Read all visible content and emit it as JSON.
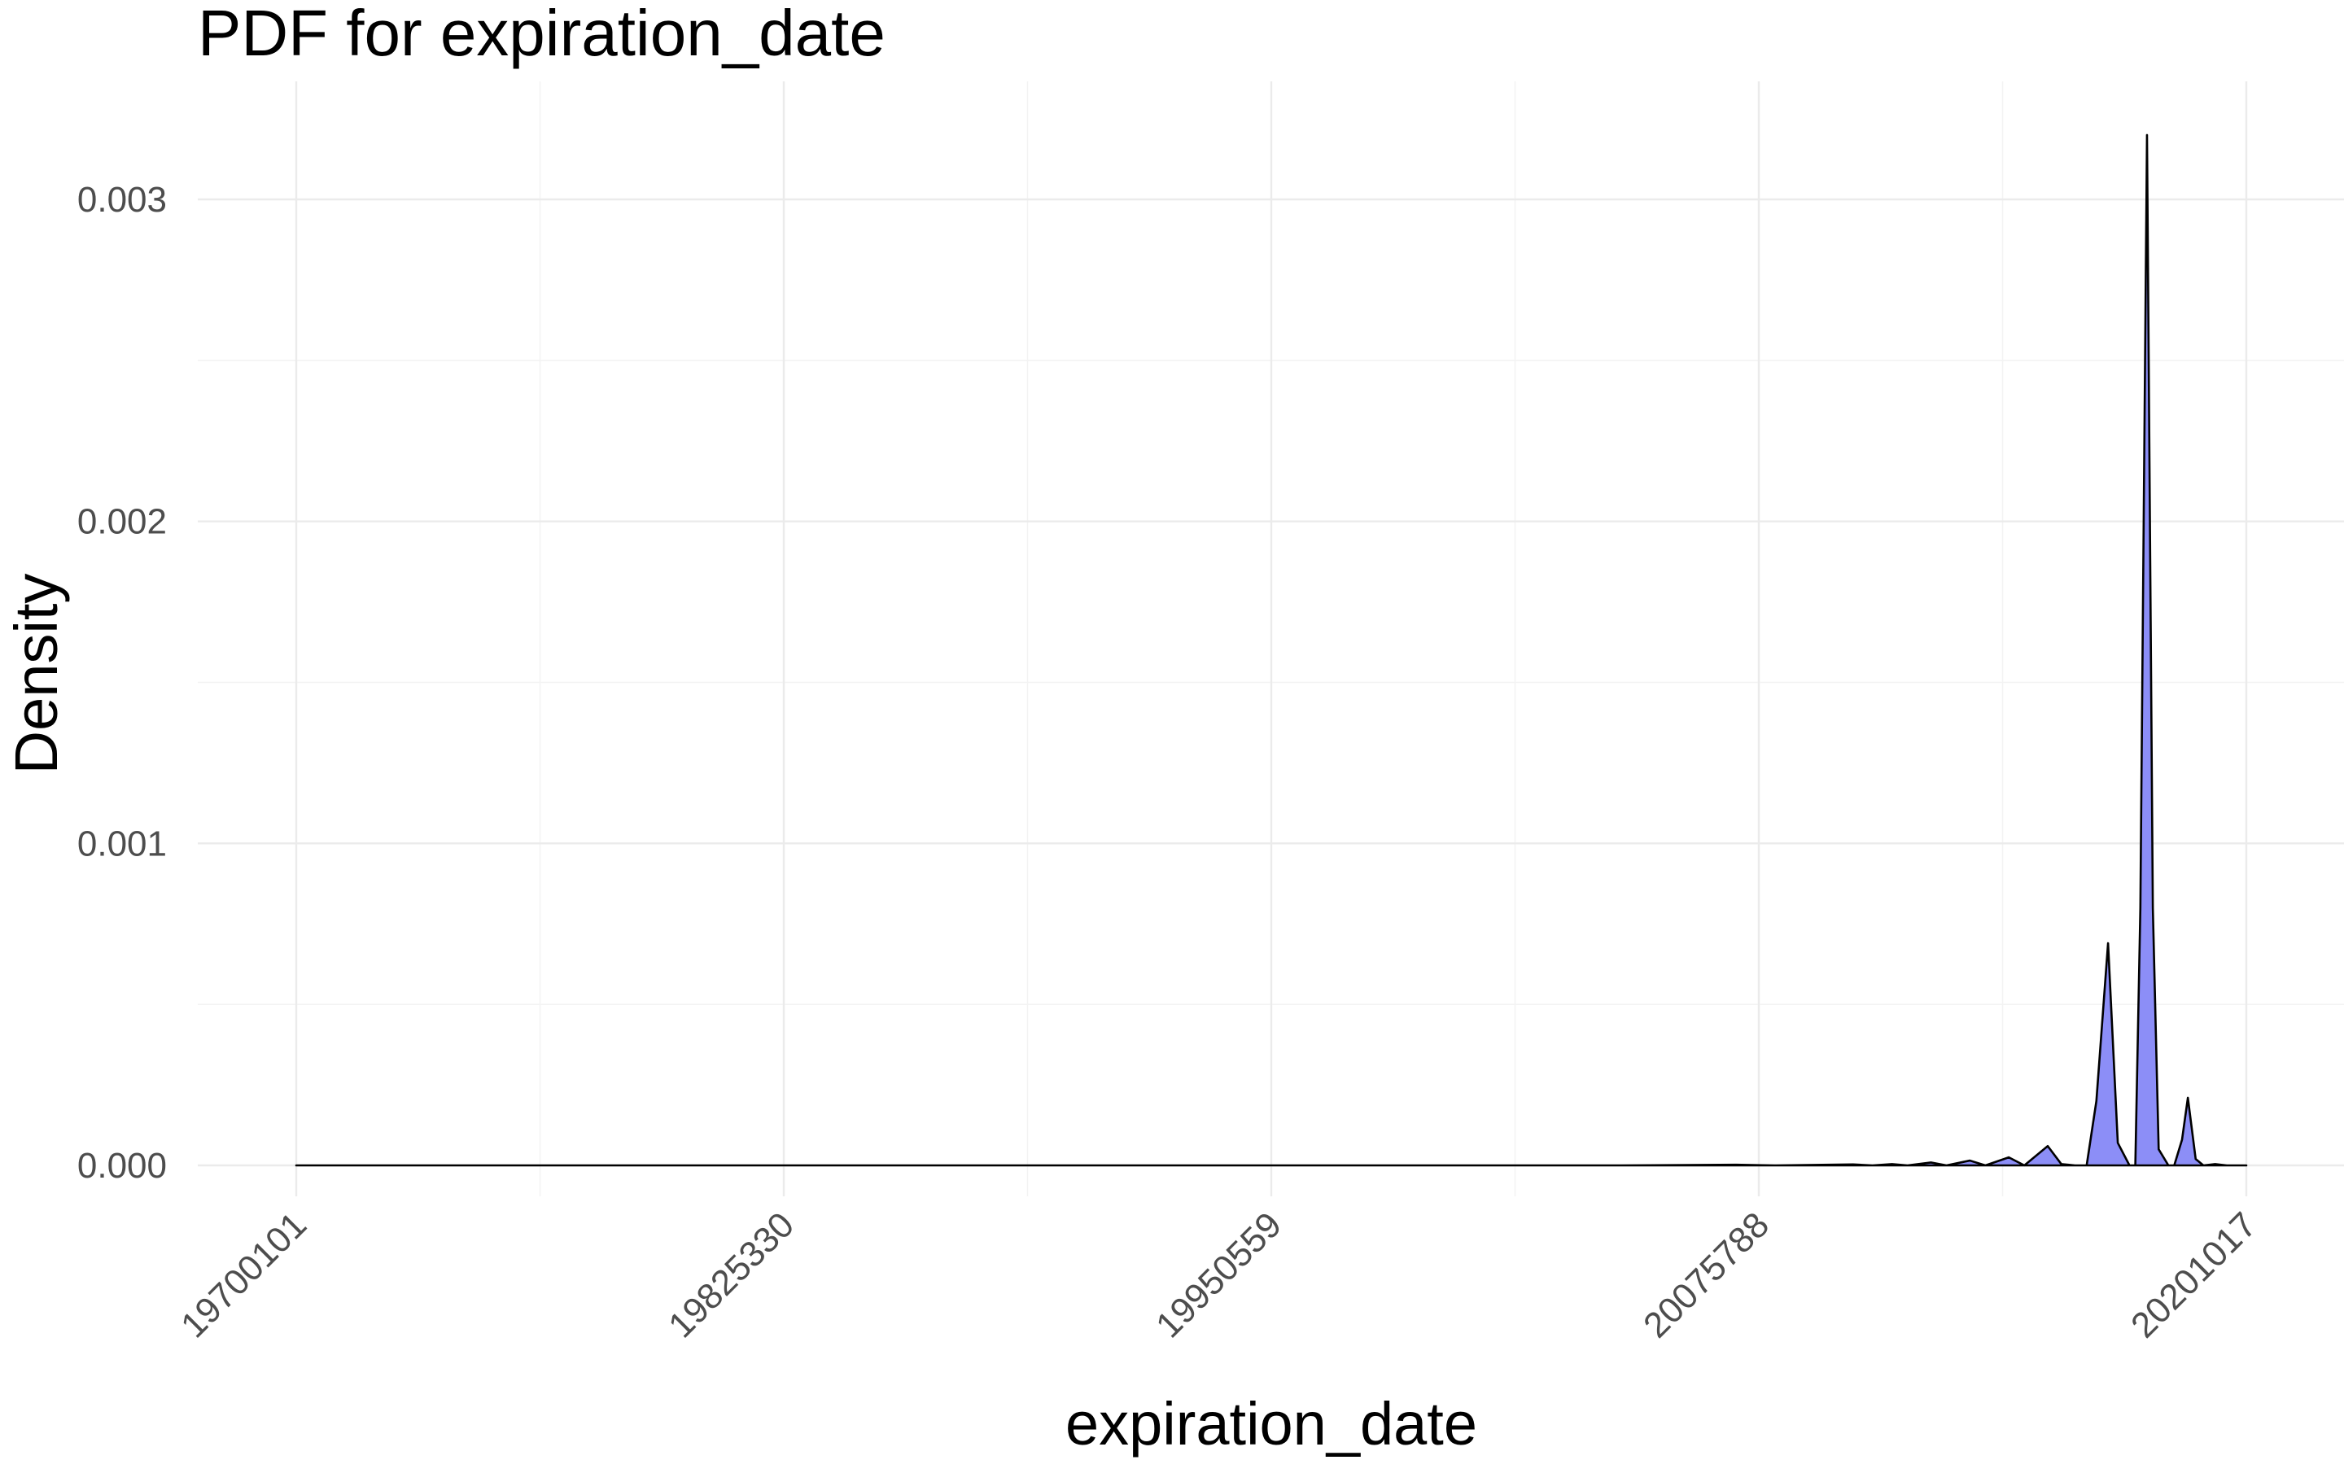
{
  "chart_data": {
    "type": "area",
    "title": "PDF for expiration_date",
    "xlabel": "expiration_date",
    "ylabel": "Density",
    "xlim": [
      19700101,
      20201017
    ],
    "ylim": [
      0,
      0.0032
    ],
    "x_ticks": [
      19700101,
      19825330,
      19950559,
      20075788,
      20201017
    ],
    "x_tick_labels": [
      "19700101",
      "19825330",
      "19950559",
      "20075788",
      "20201017"
    ],
    "y_ticks": [
      0,
      0.001,
      0.002,
      0.003
    ],
    "y_tick_labels": [
      "0.000",
      "0.001",
      "0.002",
      "0.003"
    ],
    "grid": true,
    "fill_color": "#8c8ef7",
    "line_color": "#000000",
    "series": [
      {
        "points": [
          [
            19700101,
            0
          ],
          [
            20000000,
            0
          ],
          [
            20040000,
            0
          ],
          [
            20070000,
            2e-06
          ],
          [
            20080000,
            0
          ],
          [
            20100000,
            3e-06
          ],
          [
            20105000,
            0
          ],
          [
            20110000,
            4e-06
          ],
          [
            20114000,
            0
          ],
          [
            20120000,
            9e-06
          ],
          [
            20124000,
            0
          ],
          [
            20130000,
            1.5e-05
          ],
          [
            20134000,
            0
          ],
          [
            20140000,
            2.5e-05
          ],
          [
            20144000,
            0
          ],
          [
            20150000,
            6e-05
          ],
          [
            20153500,
            4e-06
          ],
          [
            20157000,
            0
          ],
          [
            20160000,
            0
          ],
          [
            20162500,
            0.0002
          ],
          [
            20165500,
            0.00069
          ],
          [
            20168000,
            7e-05
          ],
          [
            20171000,
            0
          ],
          [
            20172500,
            0
          ],
          [
            20173800,
            0.0008
          ],
          [
            20175500,
            0.0032
          ],
          [
            20177000,
            0.0008
          ],
          [
            20178500,
            5e-05
          ],
          [
            20181000,
            0
          ],
          [
            20182500,
            0
          ],
          [
            20184500,
            8e-05
          ],
          [
            20186000,
            0.00021
          ],
          [
            20188000,
            2e-05
          ],
          [
            20190000,
            0
          ],
          [
            20193000,
            4e-06
          ],
          [
            20196000,
            0
          ],
          [
            20201017,
            0
          ]
        ]
      }
    ]
  }
}
